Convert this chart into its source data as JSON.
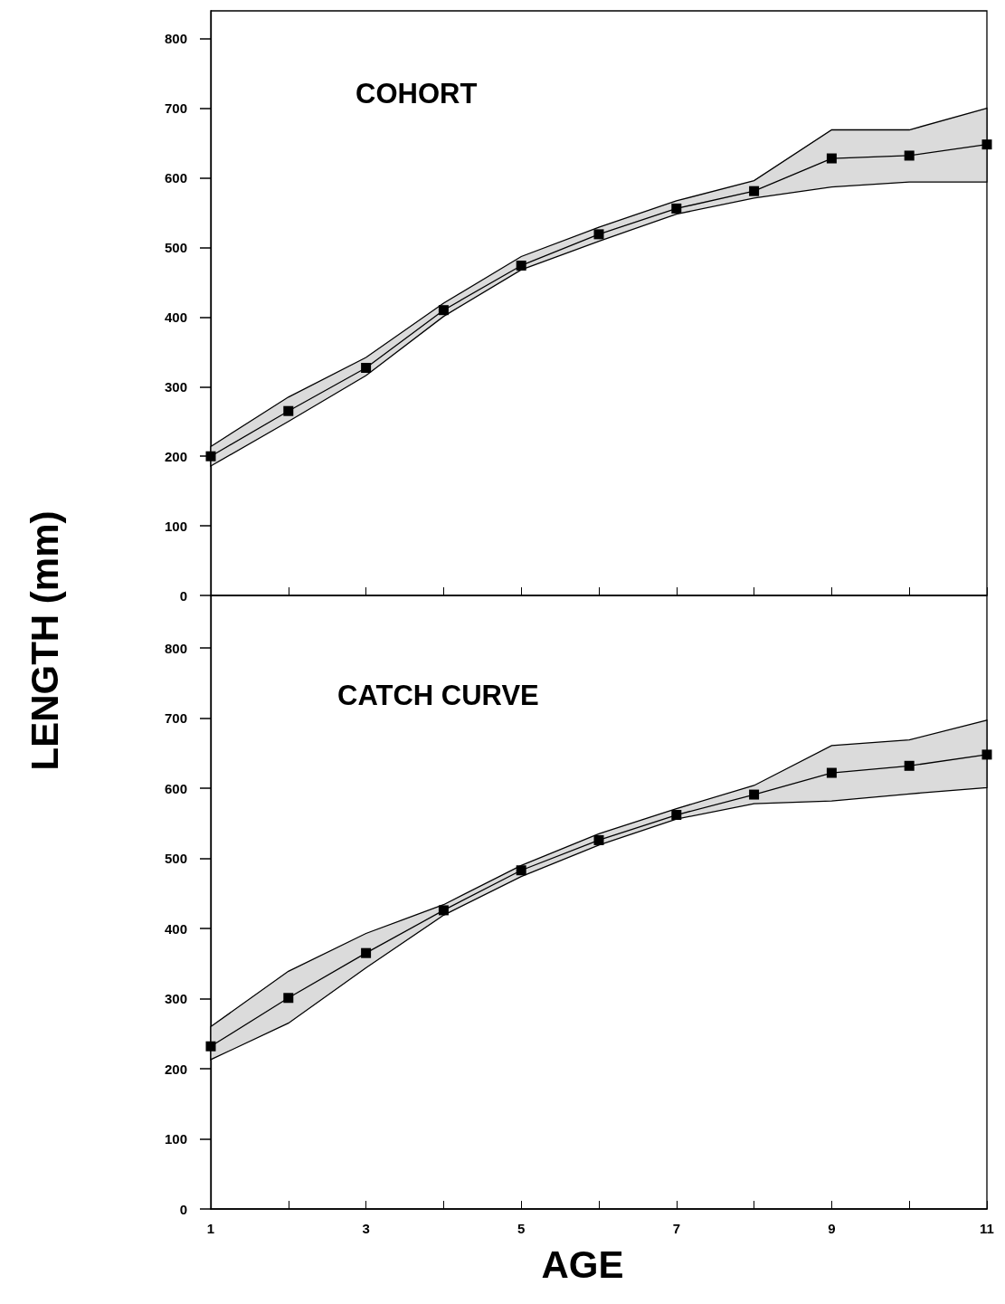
{
  "chart_data": [
    {
      "type": "line",
      "title": "COHORT",
      "ylabel": "LENGTH (mm)",
      "x": [
        1,
        2,
        3,
        4,
        5,
        6,
        7,
        8,
        9,
        10,
        11
      ],
      "series": [
        {
          "color": "#000000",
          "values": [
            200,
            265,
            327,
            410,
            474,
            519,
            556,
            581,
            628,
            632,
            648
          ],
          "lower": [
            186,
            250,
            316,
            401,
            468,
            509,
            548,
            571,
            587,
            594,
            594
          ],
          "upper": [
            214,
            285,
            342,
            420,
            487,
            529,
            567,
            596,
            669,
            669,
            700
          ]
        }
      ],
      "xlim": [
        1,
        11
      ],
      "ylim": [
        0,
        840
      ],
      "xticks": [
        {
          "value": 1,
          "label": null
        },
        {
          "value": 2,
          "label": null
        },
        {
          "value": 3,
          "label": null
        },
        {
          "value": 4,
          "label": null
        },
        {
          "value": 5,
          "label": null
        },
        {
          "value": 6,
          "label": null
        },
        {
          "value": 7,
          "label": null
        },
        {
          "value": 8,
          "label": null
        },
        {
          "value": 9,
          "label": null
        },
        {
          "value": 10,
          "label": null
        },
        {
          "value": 11,
          "label": null
        }
      ],
      "yticks": [
        0,
        100,
        200,
        300,
        400,
        500,
        600,
        700,
        800
      ],
      "tick_labels": "y",
      "marker": "square",
      "line_style": "solid"
    },
    {
      "type": "line",
      "title": "CATCH CURVE",
      "xlabel": "AGE",
      "x": [
        1,
        2,
        3,
        4,
        5,
        6,
        7,
        8,
        9,
        10,
        11
      ],
      "series": [
        {
          "color": "#000000",
          "values": [
            232,
            301,
            365,
            426,
            483,
            526,
            562,
            591,
            622,
            632,
            648
          ],
          "lower": [
            213,
            265,
            344,
            419,
            474,
            519,
            556,
            578,
            582,
            592,
            601
          ],
          "upper": [
            260,
            339,
            393,
            434,
            490,
            535,
            571,
            604,
            661,
            669,
            697
          ]
        }
      ],
      "xlim": [
        1,
        11
      ],
      "ylim": [
        0,
        875
      ],
      "xticks": [
        1,
        {
          "value": 2,
          "label": null
        },
        3,
        {
          "value": 4,
          "label": null
        },
        5,
        {
          "value": 6,
          "label": null
        },
        7,
        {
          "value": 8,
          "label": null
        },
        9,
        {
          "value": 10,
          "label": null
        },
        11
      ],
      "yticks": [
        0,
        100,
        200,
        300,
        400,
        500,
        600,
        700,
        800
      ],
      "marker": "square",
      "line_style": "solid"
    }
  ]
}
